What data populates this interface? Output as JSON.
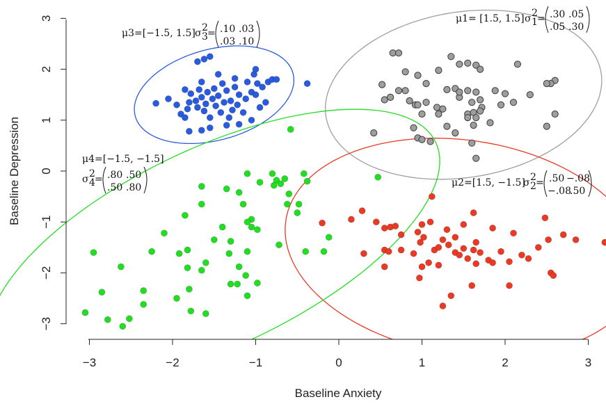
{
  "chart_data": {
    "type": "scatter",
    "xlabel": "Baseline Anxiety",
    "ylabel": "Baseline Depression",
    "xlim": [
      -3.2,
      3.2
    ],
    "ylim": [
      -3.3,
      3.2
    ],
    "xticks": [
      "−3",
      "−2",
      "−1",
      "0",
      "1",
      "2",
      "3"
    ],
    "yticks": [
      "−3",
      "−2",
      "−1",
      "0",
      "1",
      "2",
      "3"
    ],
    "grid": false,
    "series": [
      {
        "color": "#2a5bdc",
        "mean": [
          -1.5,
          1.5
        ],
        "cov": [
          [
            0.1,
            0.03
          ],
          [
            0.03,
            0.1
          ]
        ],
        "label": "μ3=[−1.5, 1.5]",
        "sigma_label": "σ",
        "sigma_sub": "3",
        "sigma_sup": "2",
        "matrix": [
          [
            ".10",
            ".03"
          ],
          [
            ".03",
            ".10"
          ]
        ],
        "points": [
          [
            -2.2,
            1.33
          ],
          [
            -2.05,
            1.42
          ],
          [
            -1.95,
            1.3
          ],
          [
            -1.9,
            1.12
          ],
          [
            -1.85,
            1.05
          ],
          [
            -1.82,
            1.22
          ],
          [
            -1.8,
            1.35
          ],
          [
            -1.78,
            1.52
          ],
          [
            -1.72,
            1.38
          ],
          [
            -1.7,
            1.25
          ],
          [
            -1.68,
            1.6
          ],
          [
            -1.65,
            1.75
          ],
          [
            -1.65,
            1.45
          ],
          [
            -1.62,
            1.18
          ],
          [
            -1.6,
            1.32
          ],
          [
            -1.58,
            1.55
          ],
          [
            -1.55,
            1.05
          ],
          [
            -1.52,
            1.42
          ],
          [
            -1.5,
            1.62
          ],
          [
            -1.48,
            1.28
          ],
          [
            -1.45,
            1.48
          ],
          [
            -1.42,
            1.15
          ],
          [
            -1.4,
            1.72
          ],
          [
            -1.38,
            1.35
          ],
          [
            -1.35,
            1.58
          ],
          [
            -1.32,
            1.05
          ],
          [
            -1.3,
            1.38
          ],
          [
            -1.28,
            1.2
          ],
          [
            -1.25,
            1.65
          ],
          [
            -1.22,
            1.3
          ],
          [
            -1.2,
            1.5
          ],
          [
            -1.15,
            1.15
          ],
          [
            -1.12,
            1.42
          ],
          [
            -1.1,
            1.75
          ],
          [
            -1.05,
            1.55
          ],
          [
            -1.02,
            1.9
          ],
          [
            -1.0,
            1.5
          ],
          [
            -0.98,
            1.72
          ],
          [
            -0.95,
            1.25
          ],
          [
            -0.92,
            1.65
          ],
          [
            -0.88,
            1.35
          ],
          [
            -0.85,
            1.75
          ],
          [
            -0.8,
            1.8
          ],
          [
            -0.75,
            1.8
          ],
          [
            -1.8,
            0.78
          ],
          [
            -1.65,
            0.8
          ],
          [
            -1.55,
            0.85
          ],
          [
            -1.35,
            0.9
          ],
          [
            -1.2,
            0.92
          ],
          [
            -1.05,
            1.0
          ],
          [
            -1.7,
            2.15
          ],
          [
            -1.62,
            2.2
          ],
          [
            -1.55,
            2.25
          ],
          [
            -1.0,
            2.0
          ],
          [
            -0.38,
            1.72
          ],
          [
            -1.25,
            1.82
          ],
          [
            -1.45,
            1.9
          ],
          [
            -1.85,
            1.6
          ]
        ]
      },
      {
        "color": "#9e9e9e",
        "mean": [
          1.5,
          1.5
        ],
        "cov": [
          [
            0.3,
            0.05
          ],
          [
            0.05,
            0.3
          ]
        ],
        "label": "μ1= [1.5, 1.5]",
        "sigma_label": "σ",
        "sigma_sub": "1",
        "sigma_sup": "2",
        "matrix": [
          [
            ".30",
            ".05"
          ],
          [
            ".05",
            ".30"
          ]
        ],
        "points": [
          [
            0.65,
            2.32
          ],
          [
            0.72,
            2.32
          ],
          [
            1.35,
            2.25
          ],
          [
            1.45,
            2.1
          ],
          [
            1.55,
            2.12
          ],
          [
            1.65,
            2.08
          ],
          [
            2.15,
            2.1
          ],
          [
            0.8,
            1.95
          ],
          [
            0.95,
            1.88
          ],
          [
            1.2,
            1.98
          ],
          [
            1.7,
            2.0
          ],
          [
            2.6,
            1.78
          ],
          [
            0.52,
            1.7
          ],
          [
            0.72,
            1.58
          ],
          [
            0.8,
            1.58
          ],
          [
            1.05,
            1.72
          ],
          [
            1.4,
            1.62
          ],
          [
            1.55,
            1.58
          ],
          [
            1.3,
            1.6
          ],
          [
            1.88,
            1.58
          ],
          [
            2.0,
            1.52
          ],
          [
            2.3,
            1.5
          ],
          [
            2.55,
            1.72
          ],
          [
            0.62,
            1.45
          ],
          [
            0.85,
            1.38
          ],
          [
            0.92,
            1.3
          ],
          [
            1.05,
            1.35
          ],
          [
            1.18,
            1.25
          ],
          [
            1.45,
            1.45
          ],
          [
            1.6,
            1.35
          ],
          [
            1.7,
            1.4
          ],
          [
            1.72,
            1.25
          ],
          [
            1.95,
            1.3
          ],
          [
            2.1,
            1.35
          ],
          [
            0.95,
            1.3
          ],
          [
            1.25,
            1.22
          ],
          [
            1.55,
            1.12
          ],
          [
            1.7,
            1.18
          ],
          [
            2.5,
            1.72
          ],
          [
            0.55,
            1.4
          ],
          [
            1.45,
            1.55
          ],
          [
            1.62,
            1.15
          ],
          [
            1.0,
            1.12
          ],
          [
            1.2,
            1.12
          ],
          [
            1.55,
            1.05
          ],
          [
            1.65,
            1.05
          ],
          [
            1.82,
            0.95
          ],
          [
            2.6,
            1.12
          ],
          [
            1.62,
            0.9
          ],
          [
            0.9,
            0.85
          ],
          [
            1.4,
            0.75
          ],
          [
            0.42,
            0.75
          ],
          [
            0.95,
            0.65
          ],
          [
            1.0,
            0.62
          ],
          [
            1.1,
            0.58
          ],
          [
            1.6,
            0.55
          ],
          [
            2.5,
            0.88
          ],
          [
            1.65,
            0.25
          ],
          [
            1.3,
            0.88
          ],
          [
            1.65,
            1.55
          ]
        ]
      },
      {
        "color": "#e83a25",
        "mean": [
          1.5,
          -1.5
        ],
        "cov": [
          [
            0.5,
            -0.08
          ],
          [
            -0.08,
            0.5
          ]
        ],
        "label": "μ2=[1.5, −1.5]",
        "sigma_label": "σ",
        "sigma_sub": "2",
        "sigma_sup": "2",
        "matrix": [
          [
            ".50",
            "−.08"
          ],
          [
            "−.08",
            ".50"
          ]
        ],
        "points": [
          [
            -0.2,
            -1.02
          ],
          [
            0.15,
            -0.95
          ],
          [
            0.28,
            -0.78
          ],
          [
            0.45,
            -1.0
          ],
          [
            0.55,
            -1.12
          ],
          [
            0.62,
            -1.1
          ],
          [
            0.68,
            -1.08
          ],
          [
            0.75,
            -1.25
          ],
          [
            0.95,
            -1.2
          ],
          [
            1.0,
            -1.05
          ],
          [
            1.12,
            -0.5
          ],
          [
            1.1,
            -1.0
          ],
          [
            1.3,
            -1.15
          ],
          [
            1.4,
            -1.3
          ],
          [
            1.5,
            -1.05
          ],
          [
            1.62,
            -0.82
          ],
          [
            1.85,
            -1.12
          ],
          [
            2.1,
            -1.22
          ],
          [
            2.48,
            -0.92
          ],
          [
            2.7,
            -1.25
          ],
          [
            0.3,
            -1.62
          ],
          [
            0.55,
            -1.55
          ],
          [
            0.6,
            -1.58
          ],
          [
            0.75,
            -1.55
          ],
          [
            0.9,
            -1.62
          ],
          [
            0.98,
            -1.4
          ],
          [
            1.02,
            -1.3
          ],
          [
            1.08,
            -1.8
          ],
          [
            1.15,
            -1.55
          ],
          [
            1.2,
            -1.5
          ],
          [
            1.25,
            -1.35
          ],
          [
            1.32,
            -1.45
          ],
          [
            1.4,
            -1.6
          ],
          [
            1.45,
            -1.65
          ],
          [
            1.5,
            -1.52
          ],
          [
            1.55,
            -1.72
          ],
          [
            1.62,
            -1.55
          ],
          [
            1.65,
            -1.4
          ],
          [
            1.7,
            -1.6
          ],
          [
            1.8,
            -1.75
          ],
          [
            1.85,
            -1.8
          ],
          [
            1.95,
            -1.58
          ],
          [
            2.05,
            -1.78
          ],
          [
            2.2,
            -1.65
          ],
          [
            2.28,
            -1.72
          ],
          [
            2.4,
            -1.5
          ],
          [
            2.52,
            -1.35
          ],
          [
            2.55,
            -2.0
          ],
          [
            2.58,
            -2.05
          ],
          [
            2.85,
            -1.35
          ],
          [
            3.2,
            -1.4
          ],
          [
            0.55,
            -1.88
          ],
          [
            1.0,
            -1.88
          ],
          [
            1.2,
            -1.85
          ],
          [
            0.97,
            -2.1
          ],
          [
            1.35,
            -2.45
          ],
          [
            1.25,
            -2.65
          ],
          [
            1.6,
            -2.25
          ],
          [
            2.05,
            -2.25
          ],
          [
            1.65,
            -1.82
          ]
        ]
      },
      {
        "color": "#22dd22",
        "mean": [
          -1.5,
          -1.5
        ],
        "cov": [
          [
            0.8,
            0.5
          ],
          [
            0.5,
            0.8
          ]
        ],
        "label": "μ4=[−1.5, −1.5]",
        "sigma_label": "σ",
        "sigma_sub": "4",
        "sigma_sup": "2",
        "matrix": [
          [
            ".80",
            ".50"
          ],
          [
            ".50",
            ".80"
          ]
        ],
        "points": [
          [
            -0.58,
            0.82
          ],
          [
            0.47,
            -0.12
          ],
          [
            -0.42,
            -0.05
          ],
          [
            -0.38,
            -0.2
          ],
          [
            -0.8,
            -0.05
          ],
          [
            -0.75,
            -0.18
          ],
          [
            -0.7,
            -0.25
          ],
          [
            -0.65,
            -0.15
          ],
          [
            -0.6,
            -0.45
          ],
          [
            -0.48,
            -0.65
          ],
          [
            -0.62,
            -0.65
          ],
          [
            -0.5,
            -0.82
          ],
          [
            -0.95,
            -0.22
          ],
          [
            -0.78,
            -0.28
          ],
          [
            -1.1,
            -0.05
          ],
          [
            -1.2,
            -0.42
          ],
          [
            -1.35,
            -0.35
          ],
          [
            -1.15,
            -0.65
          ],
          [
            -1.05,
            -0.95
          ],
          [
            -1.65,
            -0.3
          ],
          [
            -1.65,
            -0.65
          ],
          [
            -1.85,
            -0.87
          ],
          [
            -1.05,
            -1.1
          ],
          [
            -1.1,
            -1.0
          ],
          [
            -1.4,
            -1.1
          ],
          [
            -1.5,
            -1.35
          ],
          [
            -1.3,
            -1.38
          ],
          [
            -0.98,
            -1.15
          ],
          [
            -0.72,
            -1.45
          ],
          [
            -0.4,
            -1.58
          ],
          [
            -0.18,
            -1.58
          ],
          [
            -0.12,
            -1.3
          ],
          [
            -2.1,
            -1.22
          ],
          [
            -2.25,
            -1.58
          ],
          [
            -1.92,
            -1.62
          ],
          [
            -1.82,
            -1.55
          ],
          [
            -1.32,
            -1.62
          ],
          [
            -1.1,
            -1.58
          ],
          [
            -1.2,
            -1.88
          ],
          [
            -1.12,
            -2.05
          ],
          [
            -0.98,
            -2.2
          ],
          [
            -1.22,
            -2.22
          ],
          [
            -1.3,
            -2.22
          ],
          [
            -1.82,
            -1.9
          ],
          [
            -1.65,
            -1.95
          ],
          [
            -2.62,
            -1.88
          ],
          [
            -1.8,
            -2.32
          ],
          [
            -1.1,
            -2.45
          ],
          [
            -2.35,
            -2.35
          ],
          [
            -2.85,
            -2.38
          ],
          [
            -1.95,
            -2.5
          ],
          [
            -2.35,
            -2.62
          ],
          [
            -1.78,
            -2.75
          ],
          [
            -3.05,
            -2.78
          ],
          [
            -1.6,
            -2.8
          ],
          [
            -2.78,
            -2.92
          ],
          [
            -2.52,
            -2.9
          ],
          [
            -2.6,
            -3.05
          ],
          [
            -2.95,
            -1.6
          ],
          [
            -1.6,
            -1.8
          ]
        ]
      }
    ]
  }
}
